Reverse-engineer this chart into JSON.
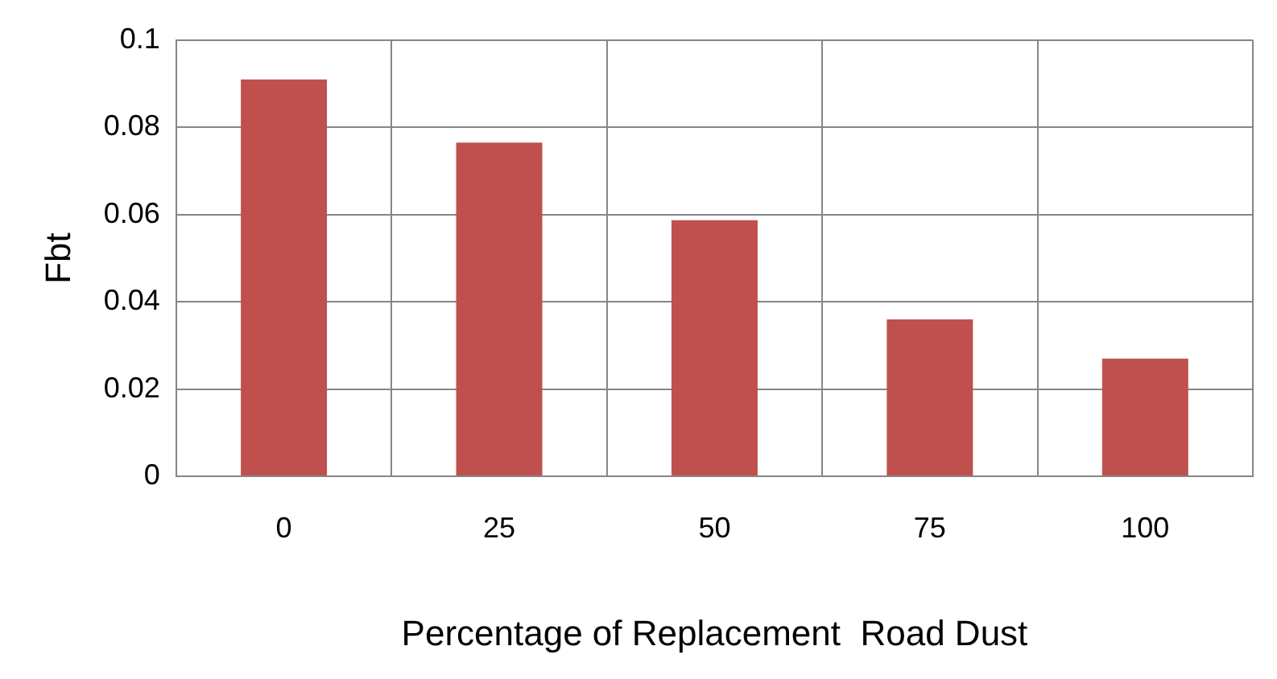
{
  "chart_data": {
    "type": "bar",
    "xlabel": "Percentage of Replacement  Road Dust",
    "ylabel": "Fbt",
    "categories": [
      "0",
      "25",
      "50",
      "75",
      "100"
    ],
    "values": [
      0.091,
      0.0765,
      0.0587,
      0.036,
      0.027
    ],
    "color": "#c0504d",
    "ylim": [
      0,
      0.1
    ],
    "yticks": [
      0,
      0.02,
      0.04,
      0.06,
      0.08,
      0.1
    ],
    "grid": true,
    "legend": false
  }
}
